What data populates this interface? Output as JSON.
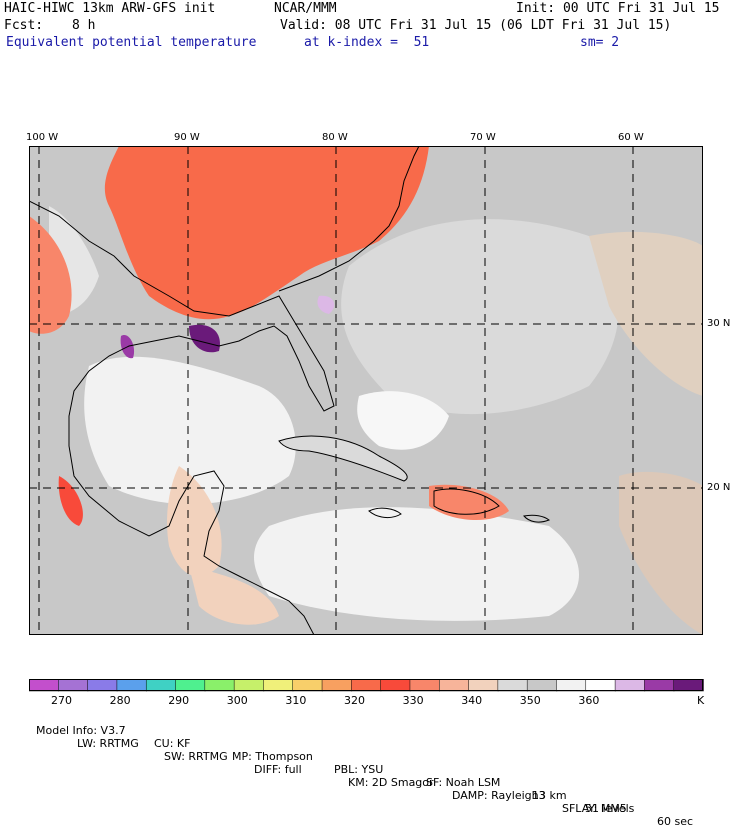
{
  "header": {
    "model": "HAIC-HIWC 13km ARW-GFS init",
    "org": "NCAR/MMM",
    "init": "Init: 00 UTC Fri 31 Jul 15",
    "fcst_label": "Fcst:",
    "fcst_value": "8 h",
    "valid": "Valid: 08 UTC Fri 31 Jul 15 (06 LDT Fri 31 Jul 15)",
    "field": "Equivalent potential temperature",
    "level": "at k-index =  51",
    "smooth": "sm= 2"
  },
  "axes": {
    "lon_labels": [
      "100 W",
      "90 W",
      "80 W",
      "70 W",
      "60 W"
    ],
    "lat_labels": [
      "30 N",
      "20 N"
    ]
  },
  "colorbar": {
    "unit": "K",
    "tick_labels": [
      "270",
      "280",
      "290",
      "300",
      "310",
      "320",
      "330",
      "340",
      "350",
      "360"
    ],
    "colors": [
      "#c34fcc",
      "#a572d4",
      "#8a7be8",
      "#5ba0ec",
      "#3fd1c4",
      "#4ff08f",
      "#8af06a",
      "#c6f06a",
      "#f0f07a",
      "#f8cf6a",
      "#f8a060",
      "#f86a4a",
      "#f84a3a",
      "#f8866a",
      "#f7b49a",
      "#f2d2bd",
      "#dadada",
      "#c8c8c8",
      "#f2f2f2",
      "#ffffff",
      "#dcb8e6",
      "#9a3aa6",
      "#6a1a7a"
    ]
  },
  "footer": {
    "line1": [
      "Model Info: V3.7",
      "CU: KF",
      "MP: Thompson",
      "PBL: YSU",
      "SF: Noah LSM",
      "13 km",
      "51 levels",
      "60 sec"
    ],
    "line2": [
      "LW: RRTMG",
      "SW: RRTMG",
      "DIFF: full",
      "KM: 2D Smagor",
      "DAMP: Rayleigh3",
      "SFLAY: MM5"
    ]
  }
}
